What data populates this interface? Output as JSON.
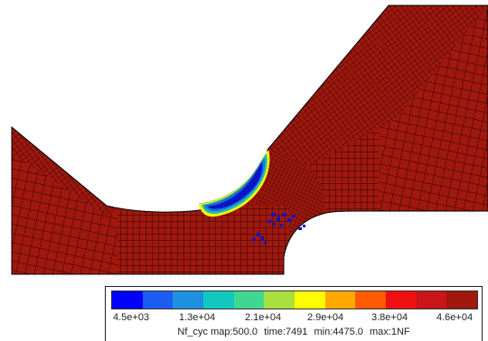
{
  "colors": {
    "background": "#ffffff",
    "mesh_fill": "#a0180e",
    "mesh_line": "#000000",
    "hotspot_blue": "#0a14c8"
  },
  "legend": {
    "swatches": [
      "#0000ff",
      "#1c5cf0",
      "#1e90e0",
      "#10c8c0",
      "#40d890",
      "#a8e040",
      "#ffff00",
      "#ffa800",
      "#ff5a00",
      "#ee1010",
      "#c8141a",
      "#a0180e"
    ],
    "tick_labels": [
      "4.5e+03",
      "1.3e+04",
      "2.1e+04",
      "2.9e+04",
      "3.8e+04",
      "4.6e+04"
    ],
    "caption_parts": [
      "Nf_cyc map:500.0",
      "time:7491",
      "min:4475.0",
      "max:1NF"
    ]
  }
}
